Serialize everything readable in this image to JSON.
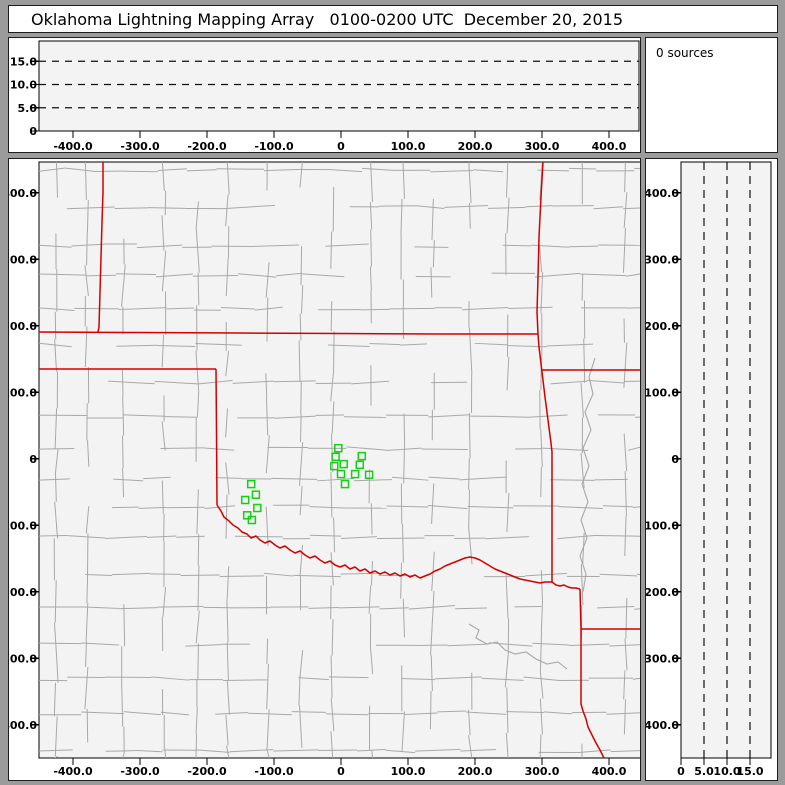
{
  "window": {
    "title": "Oklahoma Lightning Mapping Array   0100-0200 UTC  December 20, 2015"
  },
  "status": {
    "sources_label": "0 sources"
  },
  "colors": {
    "window_bg": "#9b9b9b",
    "panel_bg": "#ffffff",
    "plot_bg": "#f3f3f3",
    "axis_frame": "#000000",
    "dashed_grid": "#111111",
    "county_lines": "#a8a8a8",
    "state_borders": "#d40000",
    "station_marker": "#12d012"
  },
  "chart_data": [
    {
      "id": "ew-altitude-panel",
      "type": "scatter",
      "position": "top",
      "x_axis": {
        "range_km": [
          -450,
          445
        ],
        "ticks": [
          {
            "v": -400,
            "t": "-400.0"
          },
          {
            "v": -300,
            "t": "-300.0"
          },
          {
            "v": -200,
            "t": "-200.0"
          },
          {
            "v": -100,
            "t": "-100.0"
          },
          {
            "v": 0,
            "t": "0"
          },
          {
            "v": 100,
            "t": "100.0"
          },
          {
            "v": 200,
            "t": "200.0"
          },
          {
            "v": 300,
            "t": "300.0"
          },
          {
            "v": 400,
            "t": "400.0"
          }
        ]
      },
      "y_axis": {
        "range_km": [
          0,
          19.3
        ],
        "ticks": [
          {
            "v": 0,
            "t": "0"
          },
          {
            "v": 5,
            "t": "5.0"
          },
          {
            "v": 10,
            "t": "10.0"
          },
          {
            "v": 15,
            "t": "15.0"
          }
        ]
      },
      "dashed_gridlines_alt_km": [
        5,
        10,
        15
      ],
      "points": []
    },
    {
      "id": "plan-view-map",
      "type": "scatter",
      "position": "center",
      "x_axis": {
        "range_km": [
          -451,
          449
        ],
        "ticks": [
          {
            "v": -400,
            "t": "-400.0"
          },
          {
            "v": -300,
            "t": "-300.0"
          },
          {
            "v": -200,
            "t": "-200.0"
          },
          {
            "v": -100,
            "t": "-100.0"
          },
          {
            "v": 0,
            "t": "0"
          },
          {
            "v": 100,
            "t": "100.0"
          },
          {
            "v": 200,
            "t": "200.0"
          },
          {
            "v": 300,
            "t": "300.0"
          },
          {
            "v": 400,
            "t": "400.0"
          }
        ]
      },
      "y_axis": {
        "range_km": [
          -450,
          446
        ],
        "ticks": [
          {
            "v": 400,
            "t": "400.0"
          },
          {
            "v": 300,
            "t": "300.0"
          },
          {
            "v": 200,
            "t": "200.0"
          },
          {
            "v": 100,
            "t": "100.0"
          },
          {
            "v": 0,
            "t": "0"
          },
          {
            "v": -100,
            "t": "-100.0"
          },
          {
            "v": -200,
            "t": "-200.0"
          },
          {
            "v": -300,
            "t": "-300.0"
          },
          {
            "v": -400,
            "t": "-400.0"
          }
        ]
      },
      "stations": {
        "marker": "open-square",
        "xy_km": [
          [
            -4,
            16
          ],
          [
            -8,
            3
          ],
          [
            31,
            4
          ],
          [
            -10,
            -11
          ],
          [
            4,
            -8
          ],
          [
            28,
            -9
          ],
          [
            0,
            -23
          ],
          [
            21,
            -23
          ],
          [
            42,
            -24
          ],
          [
            6,
            -38
          ],
          [
            -134,
            -38
          ],
          [
            -127,
            -54
          ],
          [
            -143,
            -62
          ],
          [
            -125,
            -74
          ],
          [
            -140,
            -85
          ],
          [
            -133,
            -92
          ]
        ]
      },
      "points": []
    },
    {
      "id": "ns-altitude-panel",
      "type": "scatter",
      "position": "right",
      "x_axis": {
        "range_km": [
          0,
          19.6
        ],
        "ticks": [
          {
            "v": 0,
            "t": "0"
          },
          {
            "v": 5,
            "t": "5.0"
          },
          {
            "v": 10,
            "t": "10.0"
          },
          {
            "v": 15,
            "t": "15.0"
          }
        ]
      },
      "y_axis": {
        "range_km": [
          -450,
          446
        ],
        "ticks": [
          {
            "v": 400,
            "t": "400.0"
          },
          {
            "v": 300,
            "t": "300.0"
          },
          {
            "v": 200,
            "t": "200.0"
          },
          {
            "v": 100,
            "t": "100.0"
          },
          {
            "v": 0,
            "t": "0"
          },
          {
            "v": -100,
            "t": "-100.0"
          },
          {
            "v": -200,
            "t": "-200.0"
          },
          {
            "v": -300,
            "t": "-300.0"
          },
          {
            "v": -400,
            "t": "-400.0"
          }
        ]
      },
      "dashed_gridlines_alt_km": [
        5,
        10,
        15
      ],
      "points": []
    }
  ]
}
